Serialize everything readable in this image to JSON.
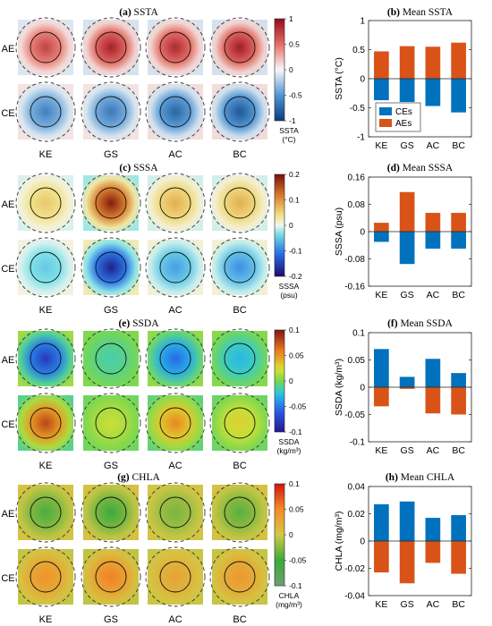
{
  "colors": {
    "ae_bar": "#D95319",
    "ce_bar": "#0072BD"
  },
  "rows": [
    "AE",
    "CE"
  ],
  "regions": [
    "KE",
    "GS",
    "AC",
    "BC"
  ],
  "panels": [
    {
      "id": "a",
      "title_letter": "(a)",
      "title_text": "SSTA",
      "colorbar": {
        "type": "diverging-red-blue",
        "ticks": [
          "1",
          "0.5",
          "0",
          "-0.5",
          "-1"
        ],
        "label_line1": "SSTA",
        "label_line2": "(°C)"
      },
      "map_intensity": [
        [
          0.72,
          0.9,
          0.85,
          0.92
        ],
        [
          -0.62,
          -0.66,
          -0.78,
          -0.85
        ]
      ]
    },
    {
      "id": "c",
      "title_letter": "(c)",
      "title_text": "SSSA",
      "colorbar": {
        "type": "diverging-dark",
        "ticks": [
          "0.2",
          "0.1",
          "0",
          "-0.1",
          "-0.2"
        ],
        "label_line1": "SSSA",
        "label_line2": "(psu)"
      },
      "map_intensity": [
        [
          0.3,
          0.95,
          0.4,
          0.4
        ],
        [
          -0.25,
          -0.9,
          -0.4,
          -0.45
        ]
      ]
    },
    {
      "id": "e",
      "title_letter": "(e)",
      "title_text": "SSDA",
      "colorbar": {
        "type": "jet",
        "ticks": [
          "0.1",
          "0.05",
          "0",
          "-0.05",
          "-0.1"
        ],
        "label_line1": "SSDA",
        "label_line2": "(kg/m³)"
      },
      "map_intensity": [
        [
          -0.8,
          -0.15,
          -0.55,
          -0.3
        ],
        [
          0.8,
          0.2,
          0.55,
          0.3
        ]
      ]
    },
    {
      "id": "g",
      "title_letter": "(g)",
      "title_text": "CHLA",
      "colorbar": {
        "type": "green-orange-red",
        "ticks": [
          "0.1",
          "0.05",
          "0",
          "-0.05",
          "-0.1"
        ],
        "label_line1": "CHLA",
        "label_line2": "(mg/m³)"
      },
      "map_intensity": [
        [
          -0.45,
          -0.5,
          -0.3,
          -0.4
        ],
        [
          0.45,
          0.55,
          0.3,
          0.4
        ]
      ]
    }
  ],
  "chart_data": [
    {
      "id": "b",
      "type": "bar",
      "title_letter": "(b)",
      "title_text": "Mean SSTA",
      "ylabel": "SSTA (°C)",
      "ylim": [
        -1,
        1
      ],
      "yticks": [
        "1",
        "0.5",
        "0",
        "-0.5",
        "-1"
      ],
      "yticks_values": [
        1,
        0.5,
        0,
        -0.5,
        -1
      ],
      "categories": [
        "KE",
        "GS",
        "AC",
        "BC"
      ],
      "series": [
        {
          "name": "CEs",
          "values": [
            -0.37,
            -0.4,
            -0.47,
            -0.58
          ]
        },
        {
          "name": "AEs",
          "values": [
            0.47,
            0.56,
            0.55,
            0.62
          ]
        }
      ],
      "legend": "lower-right"
    },
    {
      "id": "d",
      "type": "bar",
      "title_letter": "(d)",
      "title_text": "Mean SSSA",
      "ylabel": "SSSA (psu)",
      "ylim": [
        -0.16,
        0.16
      ],
      "yticks": [
        "0.16",
        "0.08",
        "0",
        "-0.08",
        "-0.16"
      ],
      "yticks_values": [
        0.16,
        0.08,
        0,
        -0.08,
        -0.16
      ],
      "categories": [
        "KE",
        "GS",
        "AC",
        "BC"
      ],
      "series": [
        {
          "name": "CEs",
          "values": [
            -0.03,
            -0.095,
            -0.05,
            -0.05
          ]
        },
        {
          "name": "AEs",
          "values": [
            0.026,
            0.116,
            0.055,
            0.055
          ]
        }
      ]
    },
    {
      "id": "f",
      "type": "bar",
      "title_letter": "(f)",
      "title_text": "Mean SSDA",
      "ylabel": "SSDA (kg/m³)",
      "ylim": [
        -0.1,
        0.1
      ],
      "yticks": [
        "0.1",
        "0.05",
        "0",
        "-0.05",
        "-0.1"
      ],
      "yticks_values": [
        0.1,
        0.05,
        0,
        -0.05,
        -0.1
      ],
      "categories": [
        "KE",
        "GS",
        "AC",
        "BC"
      ],
      "series": [
        {
          "name": "CEs",
          "values": [
            0.07,
            0.019,
            0.052,
            0.026
          ]
        },
        {
          "name": "AEs",
          "values": [
            -0.035,
            -0.003,
            -0.048,
            -0.05
          ]
        }
      ]
    },
    {
      "id": "h",
      "type": "bar",
      "title_letter": "(h)",
      "title_text": "Mean CHLA",
      "ylabel": "CHLA (mg/m³)",
      "ylim": [
        -0.04,
        0.04
      ],
      "yticks": [
        "0.04",
        "0.02",
        "0",
        "-0.02",
        "-0.04"
      ],
      "yticks_values": [
        0.04,
        0.02,
        0,
        -0.02,
        -0.04
      ],
      "categories": [
        "KE",
        "GS",
        "AC",
        "BC"
      ],
      "series": [
        {
          "name": "CEs",
          "values": [
            0.027,
            0.029,
            0.017,
            0.019
          ]
        },
        {
          "name": "AEs",
          "values": [
            -0.023,
            -0.031,
            -0.016,
            -0.024
          ]
        }
      ]
    }
  ]
}
